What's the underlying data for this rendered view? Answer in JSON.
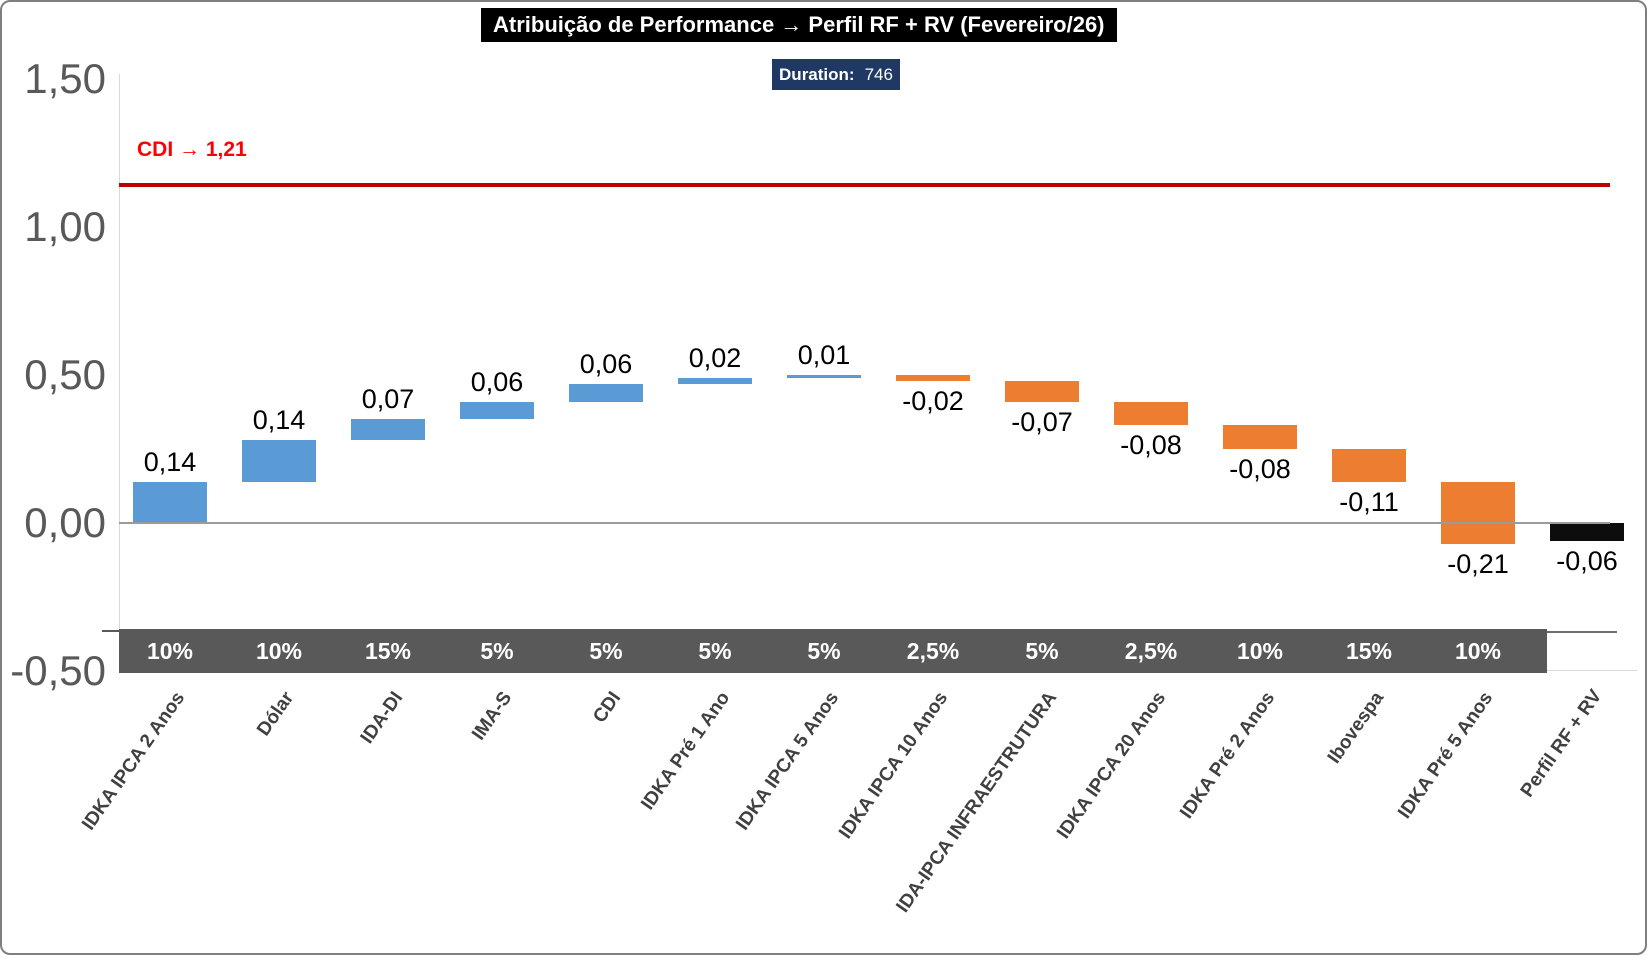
{
  "chart_data": {
    "type": "bar",
    "subtype": "waterfall",
    "title": "Atribuição de Performance → Perfil RF + RV (Fevereiro/26)",
    "duration": {
      "label": "Duration:",
      "value": "746"
    },
    "cdi_reference": {
      "label": "CDI → 1,21",
      "value": 1.21,
      "rendered_level": 1.14
    },
    "y_axis": {
      "ticks": [
        "1,50",
        "1,00",
        "0,50",
        "0,00",
        "-0,50"
      ],
      "tick_values": [
        1.5,
        1.0,
        0.5,
        0.0,
        -0.5
      ],
      "range": [
        -0.5,
        1.5
      ],
      "grid": "zero-line-only"
    },
    "legend": "none",
    "items": [
      {
        "label": "IDKA IPCA 2 Anos",
        "weight": "10%",
        "value": 0.14,
        "display": "0,14",
        "kind": "up"
      },
      {
        "label": "Dólar",
        "weight": "10%",
        "value": 0.14,
        "display": "0,14",
        "kind": "up"
      },
      {
        "label": "IDA-DI",
        "weight": "15%",
        "value": 0.07,
        "display": "0,07",
        "kind": "up"
      },
      {
        "label": "IMA-S",
        "weight": "5%",
        "value": 0.06,
        "display": "0,06",
        "kind": "up"
      },
      {
        "label": "CDI",
        "weight": "5%",
        "value": 0.06,
        "display": "0,06",
        "kind": "up"
      },
      {
        "label": "IDKA Pré 1 Ano",
        "weight": "5%",
        "value": 0.02,
        "display": "0,02",
        "kind": "up"
      },
      {
        "label": "IDKA IPCA 5 Anos",
        "weight": "5%",
        "value": 0.01,
        "display": "0,01",
        "kind": "up"
      },
      {
        "label": "IDKA IPCA 10 Anos",
        "weight": "2,5%",
        "value": -0.02,
        "display": "-0,02",
        "kind": "down"
      },
      {
        "label": "IDA-IPCA INFRAESTRUTURA",
        "weight": "5%",
        "value": -0.07,
        "display": "-0,07",
        "kind": "down"
      },
      {
        "label": "IDKA IPCA 20 Anos",
        "weight": "2,5%",
        "value": -0.08,
        "display": "-0,08",
        "kind": "down"
      },
      {
        "label": "IDKA Pré 2 Anos",
        "weight": "10%",
        "value": -0.08,
        "display": "-0,08",
        "kind": "down"
      },
      {
        "label": "Ibovespa",
        "weight": "15%",
        "value": -0.11,
        "display": "-0,11",
        "kind": "down"
      },
      {
        "label": "IDKA Pré 5 Anos",
        "weight": "10%",
        "value": -0.21,
        "display": "-0,21",
        "kind": "down"
      },
      {
        "label": "Perfil RF + RV",
        "weight": "",
        "value": -0.06,
        "display": "-0,06",
        "kind": "total"
      }
    ],
    "colors": {
      "up": "#5B9BD5",
      "down": "#ED7D31",
      "total": "#0D0D0D",
      "weights_band_bg": "#595959",
      "cdi_line": "#C00000",
      "cdi_text": "#FF0000",
      "duration_bg": "#1F3864",
      "title_bg": "#000000",
      "title_text": "#FFFFFF",
      "axis_text": "#595959",
      "category_text": "#404040"
    }
  }
}
